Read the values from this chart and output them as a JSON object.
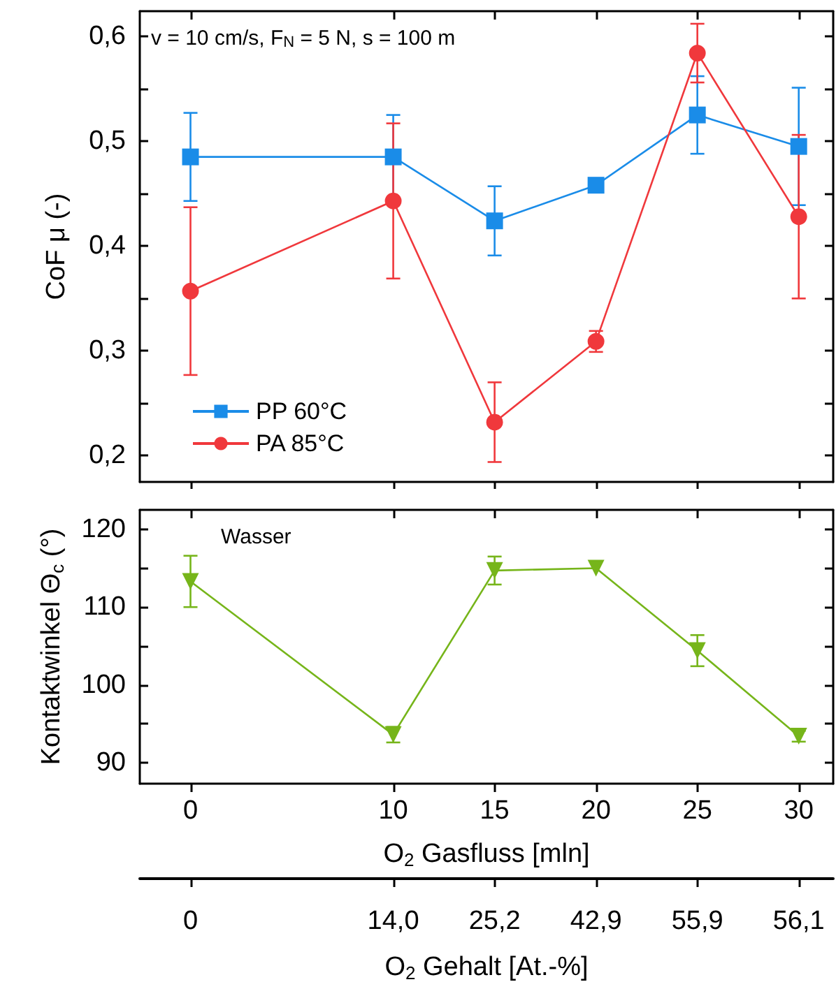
{
  "chart_data": [
    {
      "type": "line",
      "ylabel": "CoF μ (-)",
      "annotations": [
        "v = 10 cm/s, F$_{N}$ = 5 N, s = 100 m"
      ],
      "legend": "bottom left",
      "tick_labels": "y",
      "x": [
        0,
        10,
        15,
        20,
        25,
        30
      ],
      "xlim": [
        -2.5,
        31.7
      ],
      "xticks": [
        0,
        10,
        15,
        20,
        25,
        30
      ],
      "ylim": [
        0.175,
        0.624
      ],
      "yticks": [
        {
          "value": 0.2,
          "label": "0,2"
        },
        {
          "value": 0.25,
          "label": null
        },
        {
          "value": 0.3,
          "label": "0,3"
        },
        {
          "value": 0.35,
          "label": null
        },
        {
          "value": 0.4,
          "label": "0,4"
        },
        {
          "value": 0.45,
          "label": null
        },
        {
          "value": 0.5,
          "label": "0,5"
        },
        {
          "value": 0.55,
          "label": null
        },
        {
          "value": 0.6,
          "label": "0,6"
        }
      ],
      "series": [
        {
          "name": "PP 60°C",
          "color": "#1a8ce8",
          "marker": "square",
          "values": [
            0.485,
            0.485,
            0.424,
            0.458,
            0.525,
            0.495
          ],
          "errors": [
            0.042,
            0.04,
            0.033,
            null,
            0.037,
            0.056
          ]
        },
        {
          "name": "PA 85°C",
          "color": "#f0383c",
          "marker": "circle",
          "values": [
            0.357,
            0.443,
            0.232,
            0.309,
            0.584,
            0.428
          ],
          "errors": [
            0.08,
            0.074,
            0.038,
            0.01,
            0.028,
            0.078
          ]
        }
      ]
    },
    {
      "type": "line",
      "ylabel": "Kontaktwinkel Θ$_{c}$ (°)",
      "xlabel": "O$_{2}$ Gasfluss [mln]",
      "x2label": "O$_{2}$ Gehalt [At.-%]",
      "annotations": [
        "Wasser",
        {
          "text": "0",
          "x": 0
        },
        {
          "text": "14,0",
          "x": 10
        },
        {
          "text": "25,2",
          "x": 15
        },
        {
          "text": "42,9",
          "x": 20
        },
        {
          "text": "55,9",
          "x": 25
        },
        {
          "text": "56,1",
          "x": 30
        }
      ],
      "x": [
        0,
        10,
        15,
        20,
        25,
        30
      ],
      "xlim": [
        -2.5,
        31.7
      ],
      "xticks": [
        0,
        10,
        15,
        20,
        25,
        30
      ],
      "ylim": [
        87.3,
        122.5
      ],
      "yticks": [
        90,
        {
          "value": 95,
          "label": null
        },
        100,
        {
          "value": 105,
          "label": null
        },
        110,
        {
          "value": 115,
          "label": null
        },
        120
      ],
      "series": [
        {
          "color": "#76b51a",
          "marker": "triangle",
          "values": [
            113.3,
            93.6,
            114.7,
            115,
            104.4,
            93.4
          ],
          "errors": [
            3.3,
            1,
            1.8,
            null,
            2,
            0.7
          ]
        }
      ]
    }
  ]
}
